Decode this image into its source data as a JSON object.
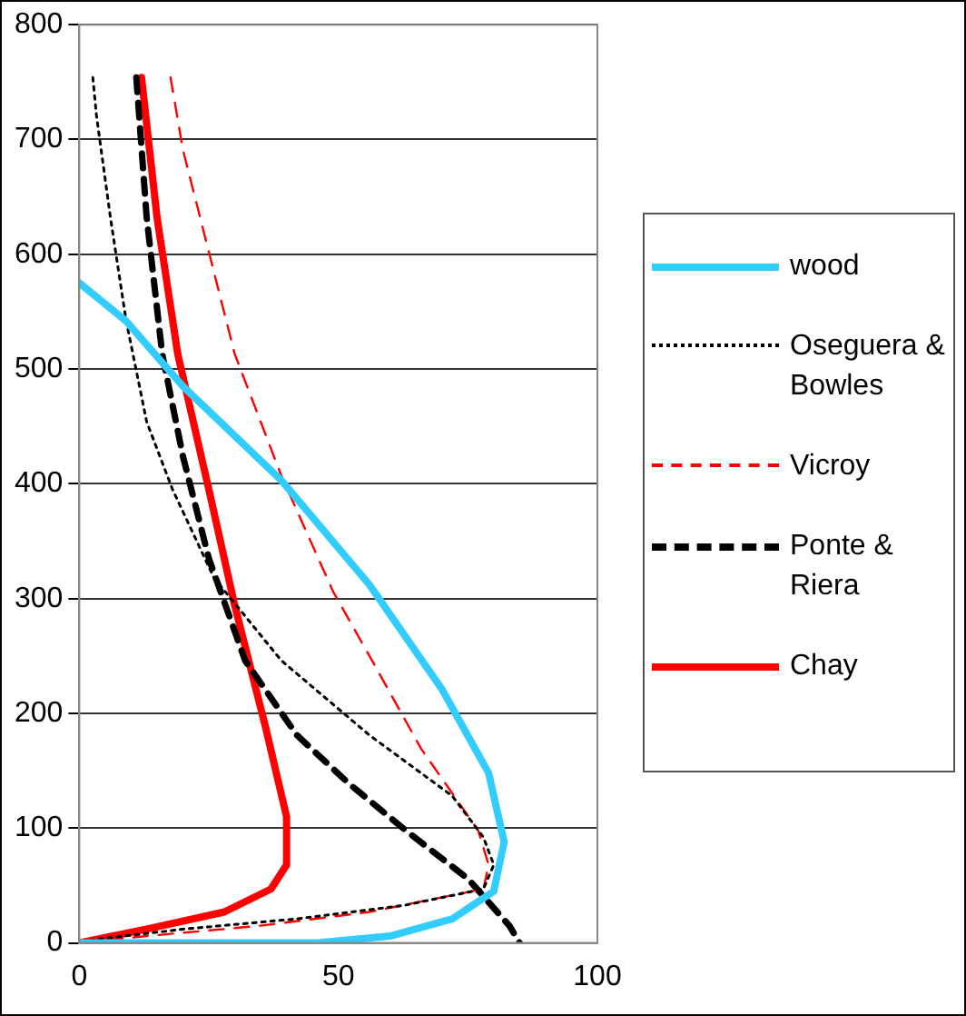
{
  "chart_data": {
    "type": "line",
    "xlim": [
      0,
      100
    ],
    "xticks": [
      0,
      50,
      100
    ],
    "ylim": [
      0,
      800
    ],
    "yticks": [
      0,
      100,
      200,
      300,
      400,
      500,
      600,
      700,
      800
    ],
    "grid": "y",
    "legend": "right",
    "marker": "none",
    "series": [
      {
        "name": "wood",
        "color": "#33ccff",
        "line_style": "solid",
        "x": [
          0,
          9,
          20,
          39,
          56,
          70,
          79,
          82,
          80,
          72,
          60,
          46,
          0
        ],
        "values": [
          575,
          542,
          485,
          403,
          312,
          221,
          148,
          88,
          45,
          21,
          6,
          0,
          0
        ]
      },
      {
        "name": "Oseguera & Bowles",
        "color": "#000000",
        "line_style": "dotted",
        "x": [
          2.6,
          3.3,
          6,
          9,
          13,
          18,
          26,
          39,
          56,
          72,
          78,
          80,
          78,
          63,
          42,
          20,
          3,
          0
        ],
        "values": [
          754,
          721,
          632,
          543,
          454,
          395,
          318,
          246,
          181,
          128,
          92,
          68,
          47,
          33,
          21,
          12,
          3,
          0
        ]
      },
      {
        "name": "Vicroy",
        "color": "#ff0000",
        "line_style": "dashed",
        "x": [
          17.6,
          20,
          25,
          30,
          39,
          49,
          58,
          66,
          77,
          79,
          78,
          56,
          35,
          13,
          0
        ],
        "values": [
          754,
          691,
          602,
          513,
          407,
          306,
          234,
          169,
          98,
          68,
          47,
          27,
          15,
          6,
          0
        ]
      },
      {
        "name": "Ponte & Riera",
        "color": "#000000",
        "line_style": "dashed",
        "x": [
          11,
          13,
          16,
          20,
          25,
          32,
          42,
          52,
          63,
          75,
          83,
          85
        ],
        "values": [
          754,
          632,
          513,
          424,
          335,
          246,
          181,
          139,
          98,
          56,
          15,
          0
        ]
      },
      {
        "name": "Chay",
        "color": "#ff0000",
        "line_style": "solid",
        "x": [
          12,
          15,
          19,
          25,
          30,
          36,
          40,
          40,
          37,
          28,
          13,
          0
        ],
        "values": [
          754,
          632,
          513,
          395,
          294,
          187,
          110,
          68,
          47,
          27,
          12,
          0
        ]
      }
    ]
  }
}
